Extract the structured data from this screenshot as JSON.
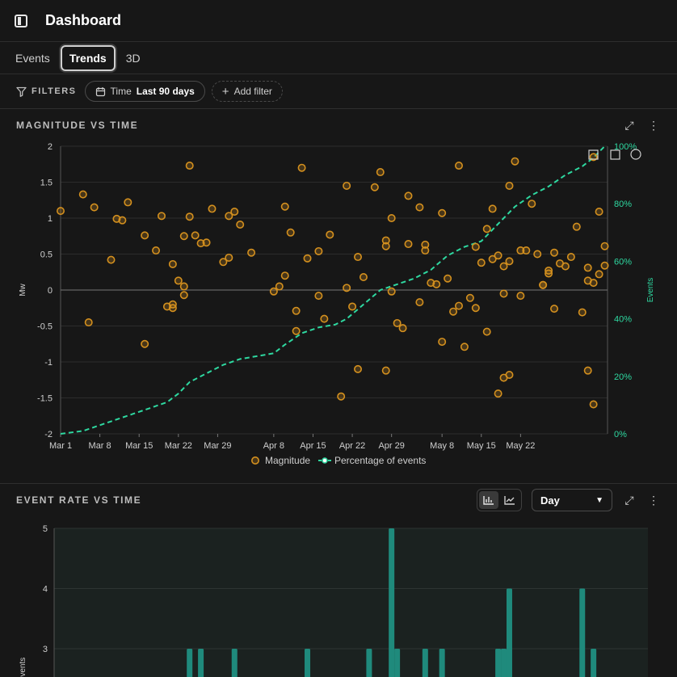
{
  "header": {
    "title": "Dashboard"
  },
  "tabs": [
    {
      "label": "Events"
    },
    {
      "label": "Trends",
      "active": true
    },
    {
      "label": "3D"
    }
  ],
  "filters": {
    "label": "FILTERS",
    "time_key": "Time",
    "time_value": "Last 90 days",
    "add_filter": "Add filter"
  },
  "panels": {
    "magnitude": {
      "title": "MAGNITUDE VS TIME"
    },
    "rate": {
      "title": "EVENT RATE VS TIME",
      "interval": "Day"
    }
  },
  "colors": {
    "magnitude": "#d4901e",
    "percentage": "#2ed8a0",
    "bars": "#1f8a7c"
  },
  "chart_data": [
    {
      "type": "scatter",
      "title": "MAGNITUDE VS TIME",
      "ylabel": "Mw",
      "y2label": "Events",
      "ylim": [
        -2,
        2
      ],
      "y2lim": [
        0,
        100
      ],
      "yticks": [
        "-2",
        "-1.5",
        "-1",
        "-0.5",
        "0",
        "0.5",
        "1",
        "1.5",
        "2"
      ],
      "y2ticks": [
        "0%",
        "20%",
        "40%",
        "60%",
        "80%",
        "100%"
      ],
      "xticks": [
        "Mar 1",
        "Mar 8",
        "Mar 15",
        "Mar 22",
        "Mar 29",
        "Apr 8",
        "Apr 15",
        "Apr 22",
        "Apr 29",
        "May 8",
        "May 15",
        "May 22"
      ],
      "legend_position": "bottom",
      "series": [
        {
          "name": "Magnitude",
          "points": [
            [
              "Mar 1",
              1.1
            ],
            [
              "Mar 5",
              1.33
            ],
            [
              "Mar 6",
              -0.45
            ],
            [
              "Mar 7",
              1.15
            ],
            [
              "Mar 10",
              0.42
            ],
            [
              "Mar 11",
              0.99
            ],
            [
              "Mar 12",
              0.97
            ],
            [
              "Mar 13",
              1.22
            ],
            [
              "Mar 16",
              -0.75
            ],
            [
              "Mar 16",
              0.76
            ],
            [
              "Mar 18",
              0.55
            ],
            [
              "Mar 19",
              1.03
            ],
            [
              "Mar 20",
              -0.23
            ],
            [
              "Mar 21",
              0.36
            ],
            [
              "Mar 21",
              -0.25
            ],
            [
              "Mar 21",
              -0.2
            ],
            [
              "Mar 22",
              0.13
            ],
            [
              "Mar 23",
              0.05
            ],
            [
              "Mar 23",
              -0.07
            ],
            [
              "Mar 23",
              0.75
            ],
            [
              "Mar 24",
              1.73
            ],
            [
              "Mar 24",
              1.02
            ],
            [
              "Mar 25",
              0.76
            ],
            [
              "Mar 26",
              0.65
            ],
            [
              "Mar 27",
              0.66
            ],
            [
              "Mar 28",
              1.13
            ],
            [
              "Mar 30",
              0.39
            ],
            [
              "Mar 31",
              0.45
            ],
            [
              "Mar 31",
              1.03
            ],
            [
              "Apr 1",
              1.09
            ],
            [
              "Apr 2",
              0.91
            ],
            [
              "Apr 4",
              0.52
            ],
            [
              "Apr 8",
              -0.02
            ],
            [
              "Apr 9",
              0.05
            ],
            [
              "Apr 10",
              0.2
            ],
            [
              "Apr 10",
              1.16
            ],
            [
              "Apr 11",
              0.8
            ],
            [
              "Apr 12",
              -0.57
            ],
            [
              "Apr 12",
              -0.29
            ],
            [
              "Apr 13",
              1.7
            ],
            [
              "Apr 14",
              0.44
            ],
            [
              "Apr 16",
              -0.08
            ],
            [
              "Apr 16",
              0.54
            ],
            [
              "Apr 17",
              -0.4
            ],
            [
              "Apr 18",
              0.77
            ],
            [
              "Apr 20",
              -1.48
            ],
            [
              "Apr 21",
              1.45
            ],
            [
              "Apr 21",
              0.03
            ],
            [
              "Apr 22",
              -0.23
            ],
            [
              "Apr 23",
              -1.1
            ],
            [
              "Apr 23",
              0.46
            ],
            [
              "Apr 24",
              0.18
            ],
            [
              "Apr 26",
              1.43
            ],
            [
              "Apr 27",
              1.64
            ],
            [
              "Apr 28",
              -1.12
            ],
            [
              "Apr 28",
              0.69
            ],
            [
              "Apr 28",
              0.61
            ],
            [
              "Apr 29",
              1.0
            ],
            [
              "Apr 29",
              -0.02
            ],
            [
              "Apr 30",
              -0.46
            ],
            [
              "May 1",
              -0.53
            ],
            [
              "May 2",
              1.31
            ],
            [
              "May 2",
              0.64
            ],
            [
              "May 4",
              1.15
            ],
            [
              "May 4",
              -0.17
            ],
            [
              "May 5",
              0.55
            ],
            [
              "May 5",
              0.63
            ],
            [
              "May 6",
              0.1
            ],
            [
              "May 7",
              0.08
            ],
            [
              "May 8",
              1.07
            ],
            [
              "May 8",
              -0.72
            ],
            [
              "May 9",
              0.16
            ],
            [
              "May 10",
              -0.3
            ],
            [
              "May 11",
              -0.22
            ],
            [
              "May 11",
              1.73
            ],
            [
              "May 12",
              -0.79
            ],
            [
              "May 13",
              -0.11
            ],
            [
              "May 14",
              0.6
            ],
            [
              "May 14",
              -0.25
            ],
            [
              "May 15",
              0.38
            ],
            [
              "May 16",
              -0.58
            ],
            [
              "May 16",
              0.85
            ],
            [
              "May 17",
              0.43
            ],
            [
              "May 17",
              1.13
            ],
            [
              "May 18",
              -1.44
            ],
            [
              "May 18",
              0.48
            ],
            [
              "May 19",
              -1.22
            ],
            [
              "May 19",
              -0.05
            ],
            [
              "May 19",
              0.33
            ],
            [
              "May 20",
              -1.18
            ],
            [
              "May 20",
              0.4
            ],
            [
              "May 20",
              1.45
            ],
            [
              "May 21",
              1.79
            ],
            [
              "May 22",
              0.55
            ],
            [
              "May 22",
              -0.08
            ],
            [
              "May 23",
              0.55
            ],
            [
              "May 24",
              1.2
            ],
            [
              "May 25",
              0.5
            ],
            [
              "May 26",
              0.07
            ],
            [
              "May 26",
              0.07
            ],
            [
              "May 27",
              0.27
            ],
            [
              "May 27",
              0.23
            ],
            [
              "May 28",
              0.52
            ],
            [
              "May 28",
              -0.26
            ],
            [
              "May 29",
              0.37
            ],
            [
              "May 30",
              0.33
            ],
            [
              "May 31",
              0.46
            ],
            [
              "Jun 1",
              0.88
            ],
            [
              "Jun 2",
              -0.31
            ],
            [
              "Jun 3",
              -1.12
            ],
            [
              "Jun 3",
              0.31
            ],
            [
              "Jun 3",
              0.13
            ],
            [
              "Jun 4",
              -1.59
            ],
            [
              "Jun 4",
              1.85
            ],
            [
              "Jun 4",
              0.1
            ],
            [
              "Jun 5",
              1.09
            ],
            [
              "Jun 5",
              0.22
            ],
            [
              "Jun 6",
              0.34
            ],
            [
              "Jun 6",
              0.61
            ]
          ]
        },
        {
          "name": "Percentage of events",
          "points": [
            [
              "Mar 1",
              0
            ],
            [
              "Mar 5",
              1
            ],
            [
              "Mar 8",
              3
            ],
            [
              "Mar 11",
              5
            ],
            [
              "Mar 14",
              7
            ],
            [
              "Mar 17",
              9
            ],
            [
              "Mar 20",
              11
            ],
            [
              "Mar 22",
              14
            ],
            [
              "Mar 24",
              18
            ],
            [
              "Mar 27",
              21
            ],
            [
              "Mar 30",
              24
            ],
            [
              "Apr 2",
              26
            ],
            [
              "Apr 5",
              27
            ],
            [
              "Apr 8",
              28
            ],
            [
              "Apr 10",
              31
            ],
            [
              "Apr 13",
              35
            ],
            [
              "Apr 16",
              37
            ],
            [
              "Apr 19",
              38
            ],
            [
              "Apr 21",
              40
            ],
            [
              "Apr 24",
              45
            ],
            [
              "Apr 27",
              50
            ],
            [
              "Apr 30",
              52
            ],
            [
              "May 3",
              54
            ],
            [
              "May 6",
              57
            ],
            [
              "May 9",
              62
            ],
            [
              "May 12",
              65
            ],
            [
              "May 15",
              67
            ],
            [
              "May 17",
              71
            ],
            [
              "May 19",
              75
            ],
            [
              "May 21",
              79
            ],
            [
              "May 24",
              83
            ],
            [
              "May 27",
              86
            ],
            [
              "May 30",
              90
            ],
            [
              "Jun 2",
              93
            ],
            [
              "Jun 4",
              96
            ],
            [
              "Jun 6",
              100
            ]
          ]
        }
      ]
    },
    {
      "type": "bar",
      "title": "EVENT RATE VS TIME",
      "ylabel": "Events",
      "ylim": [
        2.6,
        5
      ],
      "yticks": [
        "3",
        "4",
        "5"
      ],
      "series": [
        {
          "name": "Events",
          "points": [
            [
              "Mar 24",
              3
            ],
            [
              "Mar 26",
              3
            ],
            [
              "Apr 1",
              3
            ],
            [
              "Apr 14",
              3
            ],
            [
              "Apr 25",
              3
            ],
            [
              "Apr 29",
              5
            ],
            [
              "Apr 30",
              3
            ],
            [
              "May 5",
              3
            ],
            [
              "May 8",
              3
            ],
            [
              "May 18",
              3
            ],
            [
              "May 19",
              3
            ],
            [
              "May 20",
              4
            ],
            [
              "Jun 2",
              4
            ],
            [
              "Jun 4",
              3
            ]
          ]
        }
      ]
    }
  ]
}
